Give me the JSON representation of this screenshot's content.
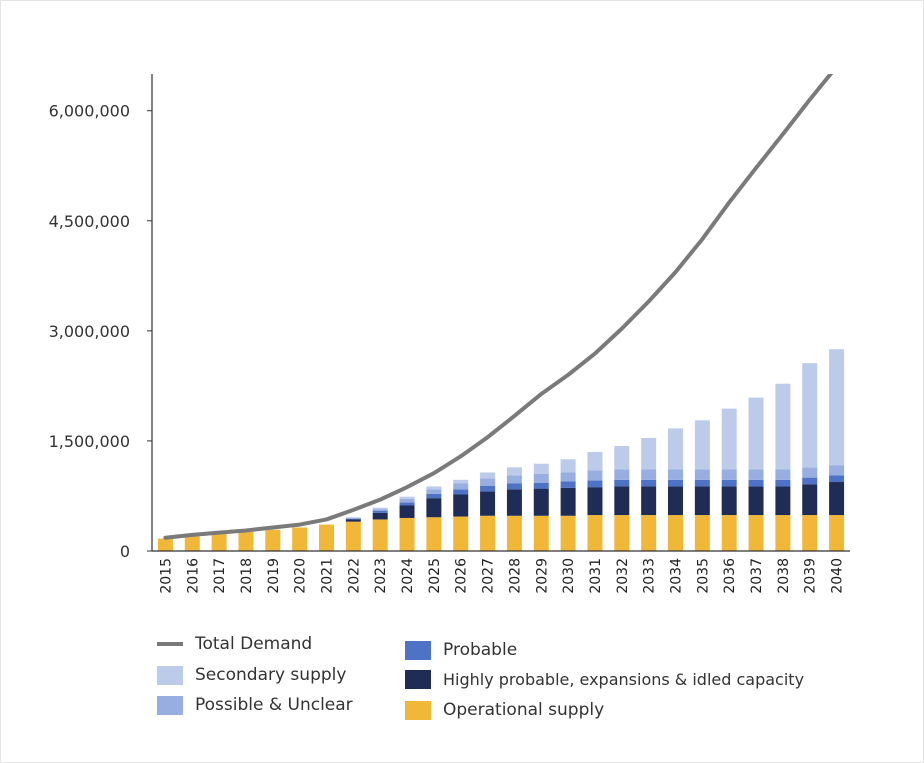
{
  "chart_data": {
    "type": "bar",
    "title": "",
    "xlabel": "",
    "ylabel": "",
    "ylim": [
      0,
      6500000
    ],
    "yticks": [
      0,
      1500000,
      3000000,
      4500000,
      6000000
    ],
    "ytick_labels": [
      "0",
      "1,500,000",
      "3,000,000",
      "4,500,000",
      "6,000,000"
    ],
    "categories": [
      "2015",
      "2016",
      "2017",
      "2018",
      "2019",
      "2020",
      "2021",
      "2022",
      "2023",
      "2024",
      "2025",
      "2026",
      "2027",
      "2028",
      "2029",
      "2030",
      "2031",
      "2032",
      "2033",
      "2034",
      "2035",
      "2036",
      "2037",
      "2038",
      "2039",
      "2040"
    ],
    "stacked": true,
    "legend_position": "bottom",
    "series": [
      {
        "name": "Operational supply",
        "color": "#f1b739",
        "values": [
          170000,
          200000,
          230000,
          260000,
          290000,
          320000,
          360000,
          400000,
          430000,
          450000,
          460000,
          470000,
          480000,
          480000,
          480000,
          480000,
          490000,
          490000,
          490000,
          490000,
          490000,
          490000,
          490000,
          490000,
          490000,
          490000
        ]
      },
      {
        "name": "Highly probable, expansions & idled capacity",
        "color": "#1f2d56",
        "values": [
          0,
          0,
          0,
          0,
          0,
          0,
          0,
          30000,
          90000,
          170000,
          260000,
          300000,
          330000,
          360000,
          370000,
          380000,
          380000,
          390000,
          390000,
          390000,
          390000,
          390000,
          390000,
          390000,
          420000,
          450000
        ]
      },
      {
        "name": "Probable",
        "color": "#4e72c6",
        "values": [
          0,
          0,
          0,
          0,
          0,
          0,
          0,
          10000,
          30000,
          40000,
          60000,
          70000,
          80000,
          80000,
          80000,
          90000,
          90000,
          90000,
          90000,
          90000,
          90000,
          90000,
          90000,
          90000,
          90000,
          90000
        ]
      },
      {
        "name": "Possible & Unclear",
        "color": "#98aee0",
        "values": [
          0,
          0,
          0,
          0,
          0,
          0,
          0,
          10000,
          20000,
          50000,
          60000,
          80000,
          100000,
          110000,
          120000,
          120000,
          140000,
          140000,
          140000,
          140000,
          140000,
          140000,
          140000,
          140000,
          140000,
          140000
        ]
      },
      {
        "name": "Secondary supply",
        "color": "#bccbea",
        "values": [
          0,
          0,
          0,
          0,
          0,
          0,
          0,
          10000,
          20000,
          30000,
          40000,
          50000,
          80000,
          110000,
          140000,
          180000,
          250000,
          320000,
          430000,
          560000,
          670000,
          830000,
          980000,
          1170000,
          1420000,
          1580000
        ]
      }
    ],
    "lines": [
      {
        "name": "Total Demand",
        "color": "#7a7a7a",
        "values": [
          180000,
          220000,
          250000,
          280000,
          320000,
          360000,
          430000,
          560000,
          700000,
          870000,
          1060000,
          1290000,
          1550000,
          1840000,
          2140000,
          2400000,
          2690000,
          3030000,
          3400000,
          3800000,
          4250000,
          4750000,
          5220000,
          5680000,
          6150000,
          6600000
        ]
      }
    ],
    "legend": {
      "col1": [
        {
          "key": "total_demand",
          "label": "Total Demand",
          "color": "#7a7a7a",
          "kind": "line"
        },
        {
          "key": "secondary",
          "label": "Secondary supply",
          "color": "#bccbea",
          "kind": "box"
        },
        {
          "key": "possible",
          "label": "Possible & Unclear",
          "color": "#98aee0",
          "kind": "box"
        }
      ],
      "col2": [
        {
          "key": "probable",
          "label": "Probable",
          "color": "#4e72c6",
          "kind": "box"
        },
        {
          "key": "highly_probable",
          "label": "Highly probable, expansions & idled capacity",
          "color": "#1f2d56",
          "kind": "box"
        },
        {
          "key": "operational",
          "label": "Operational supply",
          "color": "#f1b739",
          "kind": "box"
        }
      ]
    }
  }
}
